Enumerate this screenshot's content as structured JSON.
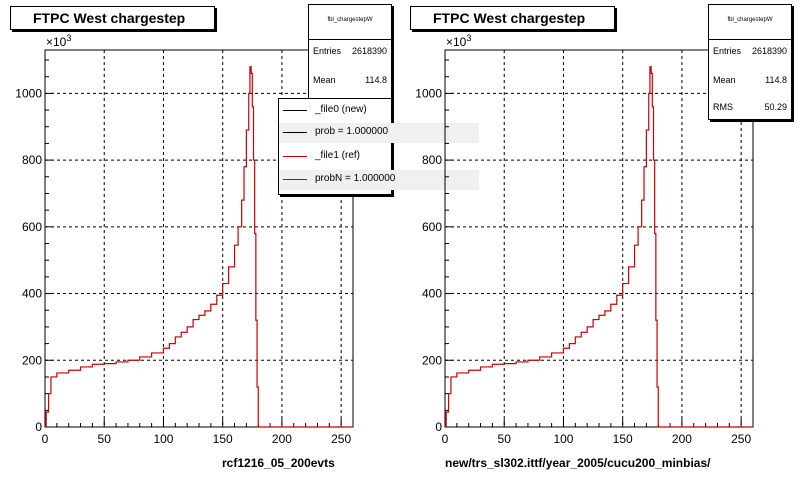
{
  "chart_data": [
    {
      "type": "line",
      "title": "FTPC West chargestep",
      "xlabel": "rcf1216_05_200evts",
      "ylabel": "",
      "y_multiplier": "×10",
      "y_exponent": "3",
      "xlim": [
        0,
        260
      ],
      "ylim": [
        0,
        1130
      ],
      "x_ticks": [
        0,
        50,
        100,
        150,
        200,
        250
      ],
      "y_ticks": [
        0,
        200,
        400,
        600,
        800,
        1000
      ],
      "grid": true,
      "legend_position": "top-right",
      "stats": {
        "name": "fbl_chargestepW",
        "entries_label": "Entries",
        "entries": "2618390",
        "mean_label": "Mean",
        "mean": "114.8"
      },
      "legend": [
        {
          "label": "_file0 (new)",
          "color": "#000000"
        },
        {
          "label": "prob = 1.000000",
          "color": "#000000"
        },
        {
          "label": "_file1 (ref)",
          "color": "#cc0000"
        },
        {
          "label": "probN = 1.000000",
          "color": "#cc0000"
        }
      ],
      "series": [
        {
          "color": "#cc0000",
          "step": true,
          "points": [
            [
              0,
              0
            ],
            [
              1,
              45
            ],
            [
              3,
              100
            ],
            [
              5,
              150
            ],
            [
              10,
              162
            ],
            [
              20,
              170
            ],
            [
              30,
              180
            ],
            [
              40,
              188
            ],
            [
              50,
              190
            ],
            [
              60,
              195
            ],
            [
              70,
              200
            ],
            [
              80,
              210
            ],
            [
              90,
              222
            ],
            [
              100,
              236
            ],
            [
              105,
              250
            ],
            [
              110,
              270
            ],
            [
              115,
              284
            ],
            [
              120,
              300
            ],
            [
              125,
              322
            ],
            [
              130,
              335
            ],
            [
              135,
              348
            ],
            [
              140,
              368
            ],
            [
              145,
              395
            ],
            [
              150,
              430
            ],
            [
              155,
              480
            ],
            [
              160,
              545
            ],
            [
              163,
              600
            ],
            [
              166,
              680
            ],
            [
              168,
              780
            ],
            [
              170,
              890
            ],
            [
              172,
              1000
            ],
            [
              173,
              1080
            ],
            [
              174,
              1060
            ],
            [
              175,
              960
            ],
            [
              176,
              800
            ],
            [
              177,
              580
            ],
            [
              178,
              320
            ],
            [
              179,
              120
            ],
            [
              180,
              0
            ],
            [
              260,
              0
            ]
          ]
        }
      ]
    },
    {
      "type": "line",
      "title": "FTPC West chargestep",
      "xlabel": "new/trs_sl302.ittf/year_2005/cucu200_minbias/",
      "ylabel": "",
      "y_multiplier": "×10",
      "y_exponent": "3",
      "xlim": [
        0,
        260
      ],
      "ylim": [
        0,
        1130
      ],
      "x_ticks": [
        0,
        50,
        100,
        150,
        200,
        250
      ],
      "y_ticks": [
        0,
        200,
        400,
        600,
        800,
        1000
      ],
      "grid": true,
      "stats": {
        "name": "fbl_chargestepW",
        "entries_label": "Entries",
        "entries": "2618390",
        "mean_label": "Mean",
        "mean": "114.8",
        "rms_label": "RMS",
        "rms": "50.29"
      },
      "series": [
        {
          "color": "#cc0000",
          "step": true,
          "points": [
            [
              0,
              0
            ],
            [
              1,
              45
            ],
            [
              3,
              100
            ],
            [
              5,
              150
            ],
            [
              10,
              162
            ],
            [
              20,
              170
            ],
            [
              30,
              180
            ],
            [
              40,
              188
            ],
            [
              50,
              190
            ],
            [
              60,
              195
            ],
            [
              70,
              200
            ],
            [
              80,
              210
            ],
            [
              90,
              222
            ],
            [
              100,
              236
            ],
            [
              105,
              250
            ],
            [
              110,
              270
            ],
            [
              115,
              284
            ],
            [
              120,
              300
            ],
            [
              125,
              322
            ],
            [
              130,
              335
            ],
            [
              135,
              348
            ],
            [
              140,
              368
            ],
            [
              145,
              395
            ],
            [
              150,
              430
            ],
            [
              155,
              480
            ],
            [
              160,
              545
            ],
            [
              163,
              600
            ],
            [
              166,
              680
            ],
            [
              168,
              780
            ],
            [
              170,
              890
            ],
            [
              172,
              1000
            ],
            [
              173,
              1080
            ],
            [
              174,
              1060
            ],
            [
              175,
              960
            ],
            [
              176,
              800
            ],
            [
              177,
              580
            ],
            [
              178,
              320
            ],
            [
              179,
              120
            ],
            [
              180,
              0
            ],
            [
              260,
              0
            ]
          ]
        }
      ]
    }
  ]
}
